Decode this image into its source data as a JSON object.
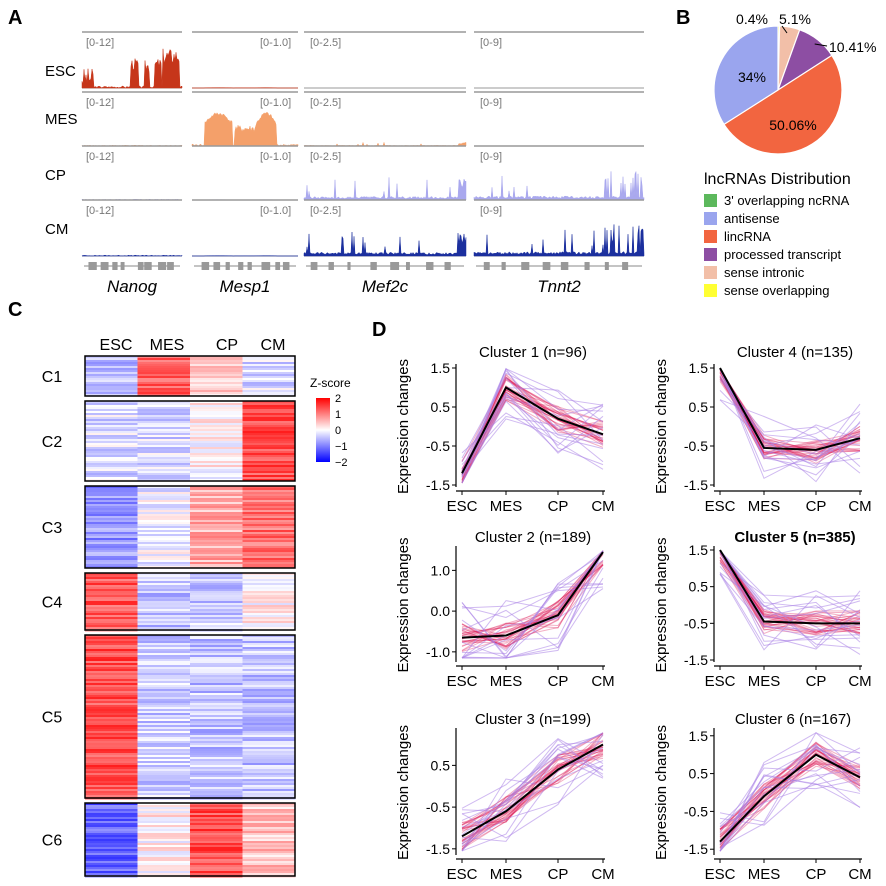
{
  "panels": {
    "a": "A",
    "b": "B",
    "c": "C",
    "d": "D"
  },
  "panel_a": {
    "rows": [
      "ESC",
      "MES",
      "CP",
      "CM"
    ],
    "genes": [
      "Nanog",
      "Mesp1",
      "Mef2c",
      "Tnnt2"
    ],
    "ranges": [
      "[0-12]",
      "[0-1.0]",
      "[0-2.5]",
      "[0-9]"
    ],
    "row_colors": [
      "#c6361a",
      "#f4a06a",
      "#a9a8ee",
      "#1b2f9e"
    ]
  },
  "chart_data": [
    {
      "type": "pie",
      "title": "lncRNAs Distribution",
      "categories": [
        "3' overlapping ncRNA",
        "antisense",
        "lincRNA",
        "processed transcript",
        "sense intronic",
        "sense overlapping"
      ],
      "values": [
        0.0,
        34.0,
        50.06,
        10.41,
        5.1,
        0.4
      ],
      "colors": [
        "#5cb85c",
        "#9aa5ee",
        "#f26540",
        "#8d4ea3",
        "#f2bfa8",
        "#ffff33"
      ],
      "labels_shown": [
        "",
        "34%",
        "50.06%",
        "10.41%",
        "5.1%",
        "0.4%"
      ]
    },
    {
      "type": "heatmap",
      "columns": [
        "ESC",
        "MES",
        "CP",
        "CM"
      ],
      "clusters": [
        "C1",
        "C2",
        "C3",
        "C4",
        "C5",
        "C6"
      ],
      "cluster_sizes": [
        96,
        189,
        199,
        135,
        385,
        167
      ],
      "mean_zscore": [
        [
          -0.6,
          1.4,
          0.4,
          -0.3
        ],
        [
          -0.3,
          -0.3,
          0.1,
          1.5
        ],
        [
          -0.9,
          -0.1,
          0.7,
          1.2
        ],
        [
          1.4,
          -0.5,
          -0.4,
          0.1
        ],
        [
          1.5,
          -0.4,
          -0.5,
          -0.5
        ],
        [
          -1.3,
          0.1,
          1.5,
          0.5
        ]
      ],
      "legend_title": "Z-score",
      "legend_ticks": [
        "2",
        "1",
        "0",
        "−1",
        "−2"
      ],
      "legend_range": [
        -2,
        2
      ]
    },
    {
      "type": "line",
      "title": "Cluster 1 (n=96)",
      "x": [
        "ESC",
        "MES",
        "CP",
        "CM"
      ],
      "values": [
        -1.2,
        1.0,
        0.2,
        -0.2
      ],
      "yticks": [
        "1.5",
        "0.5",
        "-0.5",
        "-1.5"
      ],
      "ylim": [
        -1.5,
        1.5
      ],
      "ylabel": "Expression changes"
    },
    {
      "type": "line",
      "title": "Cluster 4 (n=135)",
      "x": [
        "ESC",
        "MES",
        "CP",
        "CM"
      ],
      "values": [
        1.5,
        -0.55,
        -0.6,
        -0.3
      ],
      "yticks": [
        "1.5",
        "0.5",
        "-0.5",
        "-1.5"
      ],
      "ylim": [
        -1.5,
        1.5
      ],
      "ylabel": "Expression changes"
    },
    {
      "type": "line",
      "title": "Cluster 2 (n=189)",
      "x": [
        "ESC",
        "MES",
        "CP",
        "CM"
      ],
      "values": [
        -0.65,
        -0.6,
        -0.1,
        1.45
      ],
      "yticks": [
        "1.0",
        "0.0",
        "-1.0"
      ],
      "ylim": [
        -1.2,
        1.5
      ],
      "ylabel": "Expression changes"
    },
    {
      "type": "line",
      "title": "Cluster 5 (n=385)",
      "title_bold": true,
      "x": [
        "ESC",
        "MES",
        "CP",
        "CM"
      ],
      "values": [
        1.5,
        -0.45,
        -0.5,
        -0.5
      ],
      "yticks": [
        "1.5",
        "0.5",
        "-0.5",
        "-1.5"
      ],
      "ylim": [
        -1.5,
        1.5
      ],
      "ylabel": "Expression changes"
    },
    {
      "type": "line",
      "title": "Cluster 3 (n=199)",
      "x": [
        "ESC",
        "MES",
        "CP",
        "CM"
      ],
      "values": [
        -1.2,
        -0.6,
        0.4,
        1.0
      ],
      "yticks": [
        "0.5",
        "-0.5",
        "-1.5"
      ],
      "ylim": [
        -1.6,
        1.3
      ],
      "ylabel": "Expression changes"
    },
    {
      "type": "line",
      "title": "Cluster 6 (n=167)",
      "x": [
        "ESC",
        "MES",
        "CP",
        "CM"
      ],
      "values": [
        -1.3,
        -0.1,
        1.0,
        0.4
      ],
      "yticks": [
        "1.5",
        "0.5",
        "-0.5",
        "-1.5"
      ],
      "ylim": [
        -1.6,
        1.6
      ],
      "ylabel": "Expression changes"
    }
  ]
}
